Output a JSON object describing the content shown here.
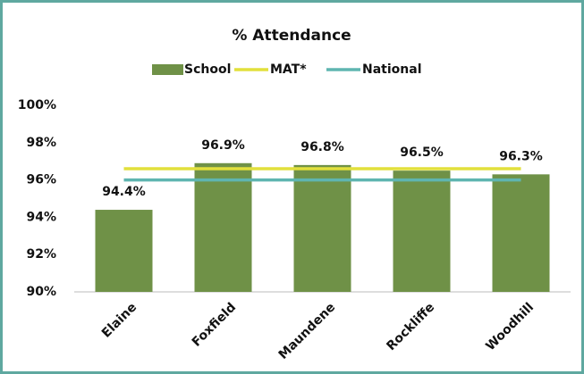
{
  "chart_data": {
    "type": "bar",
    "title": "% Attendance",
    "categories": [
      "Elaine",
      "Foxfield",
      "Maundene",
      "Rockliffe",
      "Woodhill"
    ],
    "series": [
      {
        "name": "School",
        "type": "bar",
        "color": "#6f9147",
        "values": [
          94.4,
          96.9,
          96.8,
          96.5,
          96.3
        ],
        "value_labels": [
          "94.4%",
          "96.9%",
          "96.8%",
          "96.5%",
          "96.3%"
        ]
      },
      {
        "name": "MAT*",
        "type": "line",
        "color": "#e2e03c",
        "values": [
          96.6,
          96.6,
          96.6,
          96.6,
          96.6
        ]
      },
      {
        "name": "National",
        "type": "line",
        "color": "#5fb5b0",
        "values": [
          96.0,
          96.0,
          96.0,
          96.0,
          96.0
        ]
      }
    ],
    "ylim": [
      90,
      100
    ],
    "yticks": [
      {
        "value": 90,
        "label": "90%"
      },
      {
        "value": 92,
        "label": "92%"
      },
      {
        "value": 94,
        "label": "94%"
      },
      {
        "value": 96,
        "label": "96%"
      },
      {
        "value": 98,
        "label": "98%"
      },
      {
        "value": 100,
        "label": "100%"
      }
    ],
    "grid": false,
    "legend": "top"
  }
}
